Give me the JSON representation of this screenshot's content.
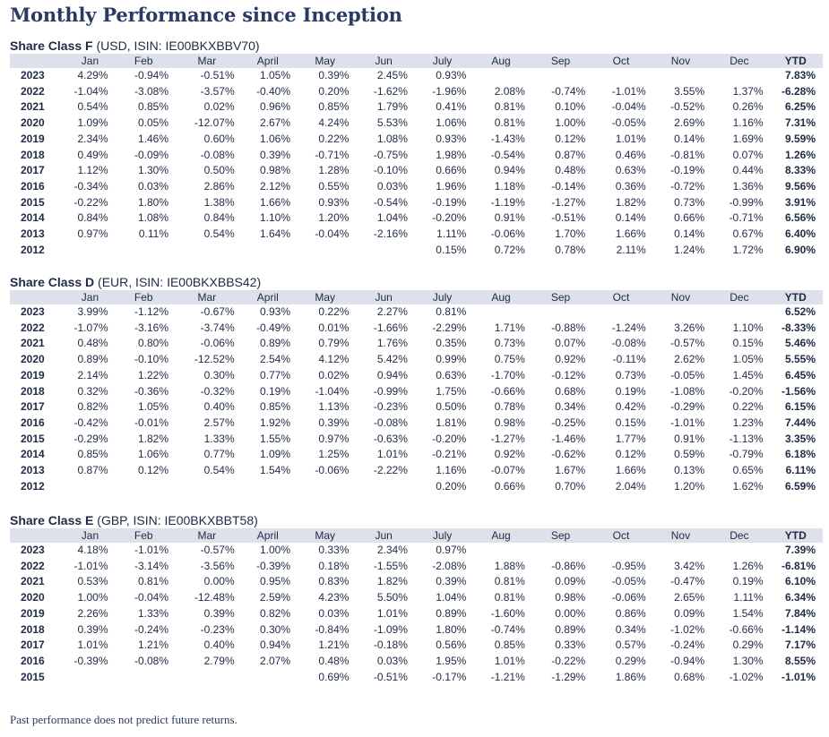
{
  "title": "Monthly Performance since Inception",
  "footer": "Past performance does not predict future returns.",
  "headers": [
    "",
    "Jan",
    "Feb",
    "Mar",
    "April",
    "May",
    "Jun",
    "July",
    "Aug",
    "Sep",
    "Oct",
    "Nov",
    "Dec",
    "YTD"
  ],
  "share_classes": [
    {
      "name": "Share Class F",
      "detail": " (USD, ISIN: IE00BKXBBV70)",
      "rows": [
        {
          "year": "2023",
          "months": [
            "4.29%",
            "-0.94%",
            "-0.51%",
            "1.05%",
            "0.39%",
            "2.45%",
            "0.93%",
            "",
            "",
            "",
            "",
            ""
          ],
          "ytd": "7.83%"
        },
        {
          "year": "2022",
          "months": [
            "-1.04%",
            "-3.08%",
            "-3.57%",
            "-0.40%",
            "0.20%",
            "-1.62%",
            "-1.96%",
            "2.08%",
            "-0.74%",
            "-1.01%",
            "3.55%",
            "1.37%"
          ],
          "ytd": "-6.28%"
        },
        {
          "year": "2021",
          "months": [
            "0.54%",
            "0.85%",
            "0.02%",
            "0.96%",
            "0.85%",
            "1.79%",
            "0.41%",
            "0.81%",
            "0.10%",
            "-0.04%",
            "-0.52%",
            "0.26%"
          ],
          "ytd": "6.25%"
        },
        {
          "year": "2020",
          "months": [
            "1.09%",
            "0.05%",
            "-12.07%",
            "2.67%",
            "4.24%",
            "5.53%",
            "1.06%",
            "0.81%",
            "1.00%",
            "-0.05%",
            "2.69%",
            "1.16%"
          ],
          "ytd": "7.31%"
        },
        {
          "year": "2019",
          "months": [
            "2.34%",
            "1.46%",
            "0.60%",
            "1.06%",
            "0.22%",
            "1.08%",
            "0.93%",
            "-1.43%",
            "0.12%",
            "1.01%",
            "0.14%",
            "1.69%"
          ],
          "ytd": "9.59%"
        },
        {
          "year": "2018",
          "months": [
            "0.49%",
            "-0.09%",
            "-0.08%",
            "0.39%",
            "-0.71%",
            "-0.75%",
            "1.98%",
            "-0.54%",
            "0.87%",
            "0.46%",
            "-0.81%",
            "0.07%"
          ],
          "ytd": "1.26%"
        },
        {
          "year": "2017",
          "months": [
            "1.12%",
            "1.30%",
            "0.50%",
            "0.98%",
            "1.28%",
            "-0.10%",
            "0.66%",
            "0.94%",
            "0.48%",
            "0.63%",
            "-0.19%",
            "0.44%"
          ],
          "ytd": "8.33%"
        },
        {
          "year": "2016",
          "months": [
            "-0.34%",
            "0.03%",
            "2.86%",
            "2.12%",
            "0.55%",
            "0.03%",
            "1.96%",
            "1.18%",
            "-0.14%",
            "0.36%",
            "-0.72%",
            "1.36%"
          ],
          "ytd": "9.56%"
        },
        {
          "year": "2015",
          "months": [
            "-0.22%",
            "1.80%",
            "1.38%",
            "1.66%",
            "0.93%",
            "-0.54%",
            "-0.19%",
            "-1.19%",
            "-1.27%",
            "1.82%",
            "0.73%",
            "-0.99%"
          ],
          "ytd": "3.91%"
        },
        {
          "year": "2014",
          "months": [
            "0.84%",
            "1.08%",
            "0.84%",
            "1.10%",
            "1.20%",
            "1.04%",
            "-0.20%",
            "0.91%",
            "-0.51%",
            "0.14%",
            "0.66%",
            "-0.71%"
          ],
          "ytd": "6.56%"
        },
        {
          "year": "2013",
          "months": [
            "0.97%",
            "0.11%",
            "0.54%",
            "1.64%",
            "-0.04%",
            "-2.16%",
            "1.11%",
            "-0.06%",
            "1.70%",
            "1.66%",
            "0.14%",
            "0.67%"
          ],
          "ytd": "6.40%"
        },
        {
          "year": "2012",
          "months": [
            "",
            "",
            "",
            "",
            "",
            "",
            "0.15%",
            "0.72%",
            "0.78%",
            "2.11%",
            "1.24%",
            "1.72%"
          ],
          "ytd": "6.90%"
        }
      ]
    },
    {
      "name": "Share Class D",
      "detail": " (EUR, ISIN: IE00BKXBBS42)",
      "rows": [
        {
          "year": "2023",
          "months": [
            "3.99%",
            "-1.12%",
            "-0.67%",
            "0.93%",
            "0.22%",
            "2.27%",
            "0.81%",
            "",
            "",
            "",
            "",
            ""
          ],
          "ytd": "6.52%"
        },
        {
          "year": "2022",
          "months": [
            "-1.07%",
            "-3.16%",
            "-3.74%",
            "-0.49%",
            "0.01%",
            "-1.66%",
            "-2.29%",
            "1.71%",
            "-0.88%",
            "-1.24%",
            "3.26%",
            "1.10%"
          ],
          "ytd": "-8.33%"
        },
        {
          "year": "2021",
          "months": [
            "0.48%",
            "0.80%",
            "-0.06%",
            "0.89%",
            "0.79%",
            "1.76%",
            "0.35%",
            "0.73%",
            "0.07%",
            "-0.08%",
            "-0.57%",
            "0.15%"
          ],
          "ytd": "5.46%"
        },
        {
          "year": "2020",
          "months": [
            "0.89%",
            "-0.10%",
            "-12.52%",
            "2.54%",
            "4.12%",
            "5.42%",
            "0.99%",
            "0.75%",
            "0.92%",
            "-0.11%",
            "2.62%",
            "1.05%"
          ],
          "ytd": "5.55%"
        },
        {
          "year": "2019",
          "months": [
            "2.14%",
            "1.22%",
            "0.30%",
            "0.77%",
            "0.02%",
            "0.94%",
            "0.63%",
            "-1.70%",
            "-0.12%",
            "0.73%",
            "-0.05%",
            "1.45%"
          ],
          "ytd": "6.45%"
        },
        {
          "year": "2018",
          "months": [
            "0.32%",
            "-0.36%",
            "-0.32%",
            "0.19%",
            "-1.04%",
            "-0.99%",
            "1.75%",
            "-0.66%",
            "0.68%",
            "0.19%",
            "-1.08%",
            "-0.20%"
          ],
          "ytd": "-1.56%"
        },
        {
          "year": "2017",
          "months": [
            "0.82%",
            "1.05%",
            "0.40%",
            "0.85%",
            "1.13%",
            "-0.23%",
            "0.50%",
            "0.78%",
            "0.34%",
            "0.42%",
            "-0.29%",
            "0.22%"
          ],
          "ytd": "6.15%"
        },
        {
          "year": "2016",
          "months": [
            "-0.42%",
            "-0.01%",
            "2.57%",
            "1.92%",
            "0.39%",
            "-0.08%",
            "1.81%",
            "0.98%",
            "-0.25%",
            "0.15%",
            "-1.01%",
            "1.23%"
          ],
          "ytd": "7.44%"
        },
        {
          "year": "2015",
          "months": [
            "-0.29%",
            "1.82%",
            "1.33%",
            "1.55%",
            "0.97%",
            "-0.63%",
            "-0.20%",
            "-1.27%",
            "-1.46%",
            "1.77%",
            "0.91%",
            "-1.13%"
          ],
          "ytd": "3.35%"
        },
        {
          "year": "2014",
          "months": [
            "0.85%",
            "1.06%",
            "0.77%",
            "1.09%",
            "1.25%",
            "1.01%",
            "-0.21%",
            "0.92%",
            "-0.62%",
            "0.12%",
            "0.59%",
            "-0.79%"
          ],
          "ytd": "6.18%"
        },
        {
          "year": "2013",
          "months": [
            "0.87%",
            "0.12%",
            "0.54%",
            "1.54%",
            "-0.06%",
            "-2.22%",
            "1.16%",
            "-0.07%",
            "1.67%",
            "1.66%",
            "0.13%",
            "0.65%"
          ],
          "ytd": "6.11%"
        },
        {
          "year": "2012",
          "months": [
            "",
            "",
            "",
            "",
            "",
            "",
            "0.20%",
            "0.66%",
            "0.70%",
            "2.04%",
            "1.20%",
            "1.62%"
          ],
          "ytd": "6.59%"
        }
      ]
    },
    {
      "name": "Share Class E",
      "detail": " (GBP, ISIN: IE00BKXBBT58)",
      "rows": [
        {
          "year": "2023",
          "months": [
            "4.18%",
            "-1.01%",
            "-0.57%",
            "1.00%",
            "0.33%",
            "2.34%",
            "0.97%",
            "",
            "",
            "",
            "",
            ""
          ],
          "ytd": "7.39%"
        },
        {
          "year": "2022",
          "months": [
            "-1.01%",
            "-3.14%",
            "-3.56%",
            "-0.39%",
            "0.18%",
            "-1.55%",
            "-2.08%",
            "1.88%",
            "-0.86%",
            "-0.95%",
            "3.42%",
            "1.26%"
          ],
          "ytd": "-6.81%"
        },
        {
          "year": "2021",
          "months": [
            "0.53%",
            "0.81%",
            "0.00%",
            "0.95%",
            "0.83%",
            "1.82%",
            "0.39%",
            "0.81%",
            "0.09%",
            "-0.05%",
            "-0.47%",
            "0.19%"
          ],
          "ytd": "6.10%"
        },
        {
          "year": "2020",
          "months": [
            "1.00%",
            "-0.04%",
            "-12.48%",
            "2.59%",
            "4.23%",
            "5.50%",
            "1.04%",
            "0.81%",
            "0.98%",
            "-0.06%",
            "2.65%",
            "1.11%"
          ],
          "ytd": "6.34%"
        },
        {
          "year": "2019",
          "months": [
            "2.26%",
            "1.33%",
            "0.39%",
            "0.82%",
            "0.03%",
            "1.01%",
            "0.89%",
            "-1.60%",
            "0.00%",
            "0.86%",
            "0.09%",
            "1.54%"
          ],
          "ytd": "7.84%"
        },
        {
          "year": "2018",
          "months": [
            "0.39%",
            "-0.24%",
            "-0.23%",
            "0.30%",
            "-0.84%",
            "-1.09%",
            "1.80%",
            "-0.74%",
            "0.89%",
            "0.34%",
            "-1.02%",
            "-0.66%"
          ],
          "ytd": "-1.14%"
        },
        {
          "year": "2017",
          "months": [
            "1.01%",
            "1.21%",
            "0.40%",
            "0.94%",
            "1.21%",
            "-0.18%",
            "0.56%",
            "0.85%",
            "0.33%",
            "0.57%",
            "-0.24%",
            "0.29%"
          ],
          "ytd": "7.17%"
        },
        {
          "year": "2016",
          "months": [
            "-0.39%",
            "-0.08%",
            "2.79%",
            "2.07%",
            "0.48%",
            "0.03%",
            "1.95%",
            "1.01%",
            "-0.22%",
            "0.29%",
            "-0.94%",
            "1.30%"
          ],
          "ytd": "8.55%"
        },
        {
          "year": "2015",
          "months": [
            "",
            "",
            "",
            "",
            "0.69%",
            "-0.51%",
            "-0.17%",
            "-1.21%",
            "-1.29%",
            "1.86%",
            "0.68%",
            "-1.02%"
          ],
          "ytd": "-1.01%"
        }
      ]
    }
  ]
}
